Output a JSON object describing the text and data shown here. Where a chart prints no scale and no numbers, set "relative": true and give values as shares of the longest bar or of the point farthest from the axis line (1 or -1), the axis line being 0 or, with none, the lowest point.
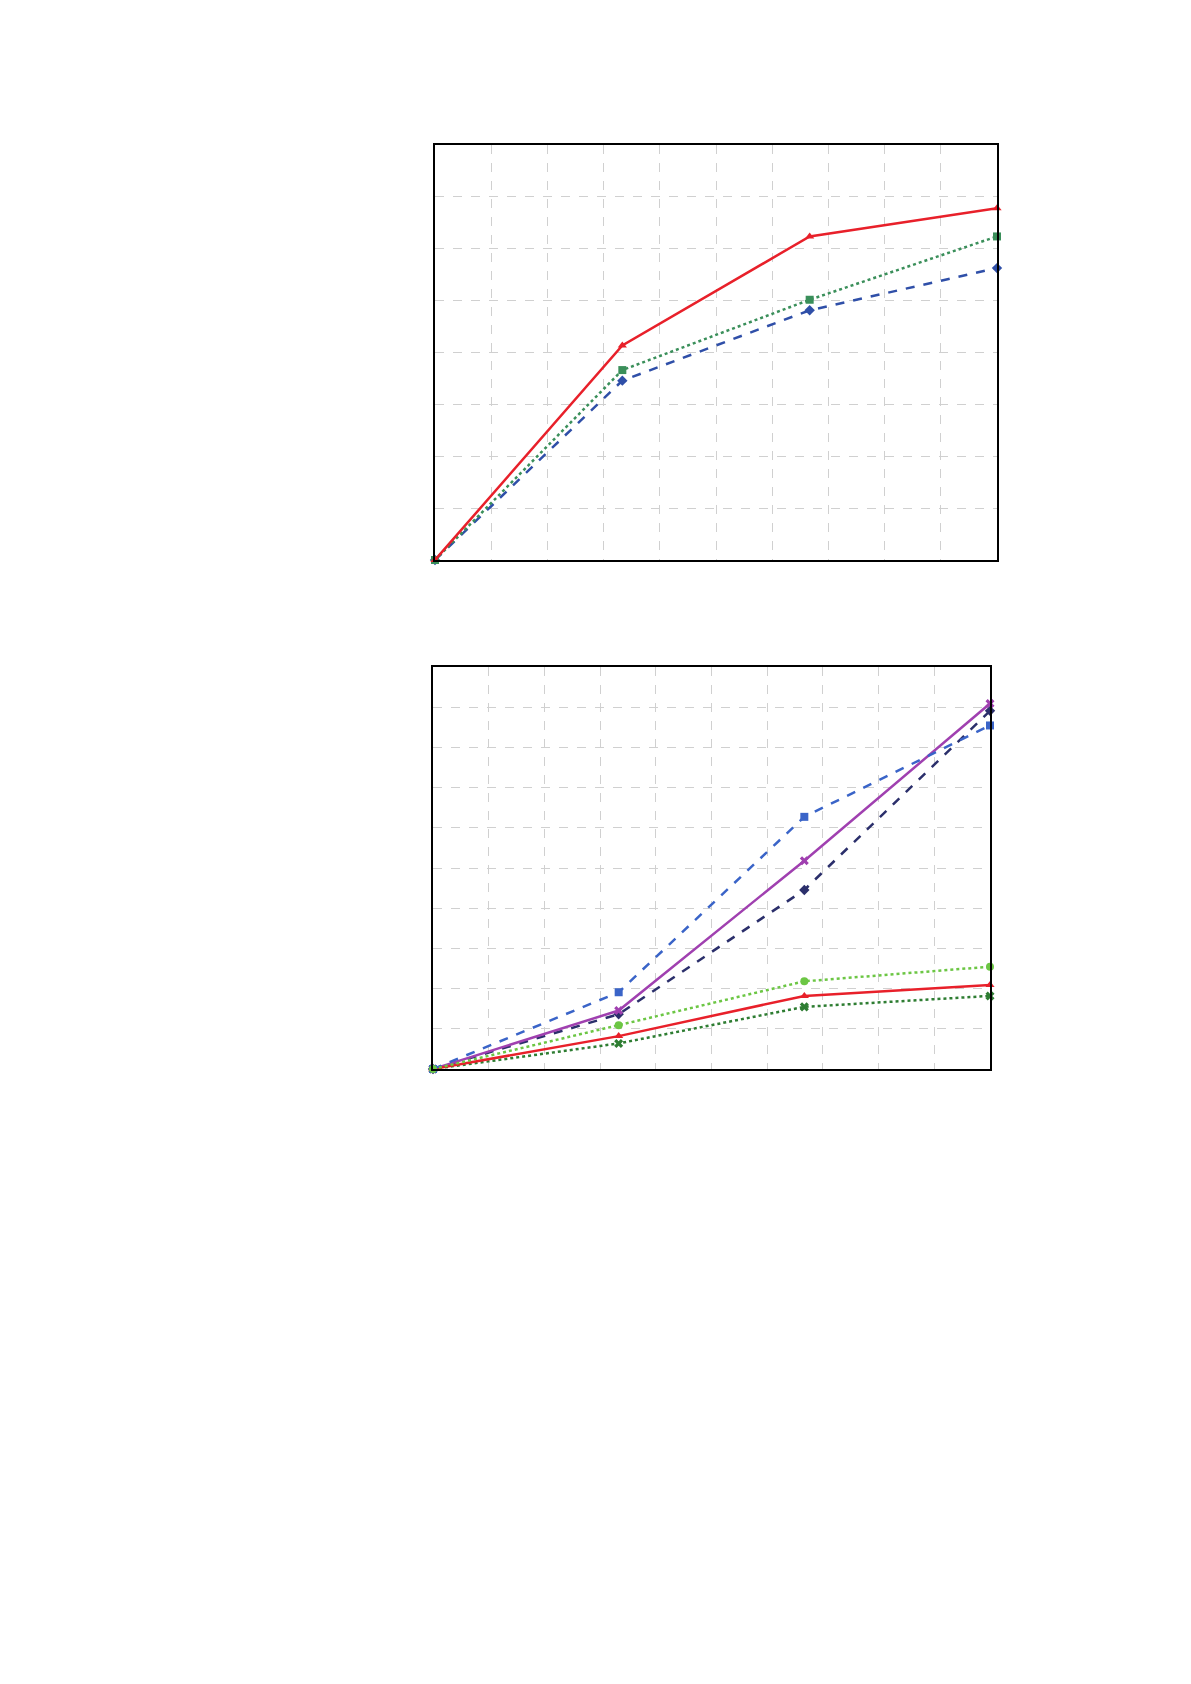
{
  "chart_data": [
    {
      "type": "line",
      "relative": true,
      "grid": true,
      "categories": [
        null,
        null,
        null,
        null
      ],
      "series": [
        {
          "color": "#2f4fa8",
          "line_style": "dashed",
          "marker": "diamond",
          "values": [
            0,
            0.51,
            0.71,
            0.83
          ]
        },
        {
          "color": "#3a8f5a",
          "line_style": "dotted",
          "marker": "square",
          "values": [
            0,
            0.54,
            0.74,
            0.92
          ]
        },
        {
          "color": "#e8202a",
          "line_style": "solid",
          "marker": "triangle",
          "values": [
            0,
            0.61,
            0.92,
            1
          ]
        }
      ]
    },
    {
      "type": "line",
      "relative": true,
      "grid": true,
      "categories": [
        null,
        null,
        null,
        null
      ],
      "series": [
        {
          "color": "#2b2f6b",
          "line_style": "dashed",
          "marker": "diamond",
          "values": [
            0,
            0.15,
            0.49,
            0.98
          ]
        },
        {
          "color": "#2e7d32",
          "line_style": "dotted",
          "marker": "cross",
          "values": [
            0,
            0.07,
            0.17,
            0.2
          ]
        },
        {
          "color": "#a040b0",
          "line_style": "solid",
          "marker": "cross",
          "values": [
            0,
            0.16,
            0.57,
            1
          ]
        },
        {
          "color": "#e8202a",
          "line_style": "solid",
          "marker": "triangle",
          "values": [
            0,
            0.09,
            0.2,
            0.23
          ]
        },
        {
          "color": "#3a64c8",
          "line_style": "dashed",
          "marker": "square",
          "values": [
            0,
            0.21,
            0.69,
            0.94
          ]
        },
        {
          "color": "#6cc644",
          "line_style": "dotted",
          "marker": "circle",
          "values": [
            0,
            0.12,
            0.24,
            0.28
          ]
        }
      ]
    }
  ]
}
